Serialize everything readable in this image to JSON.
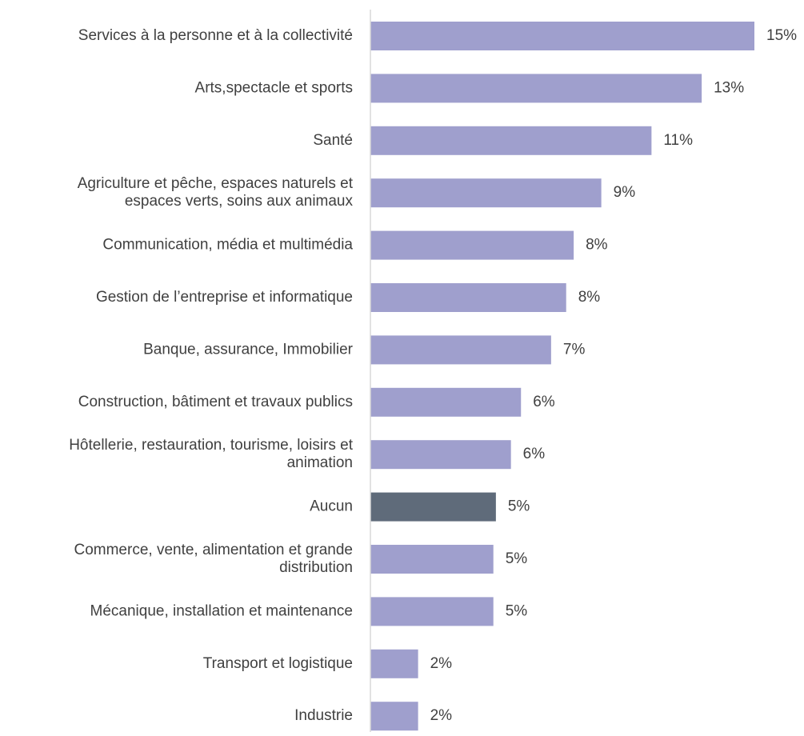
{
  "chart_data": {
    "type": "bar",
    "orientation": "horizontal",
    "categories": [
      [
        "Services à la personne et à la collectivité"
      ],
      [
        "Arts,spectacle et sports"
      ],
      [
        "Santé"
      ],
      [
        "Agriculture et pêche, espaces naturels et",
        "espaces verts, soins aux animaux"
      ],
      [
        "Communication, média et multimédia"
      ],
      [
        "Gestion de l’entreprise et informatique"
      ],
      [
        "Banque, assurance, Immobilier"
      ],
      [
        "Construction, bâtiment et travaux publics"
      ],
      [
        "Hôtellerie, restauration, tourisme, loisirs et",
        "animation"
      ],
      [
        "Aucun"
      ],
      [
        "Commerce, vente, alimentation et grande",
        "distribution"
      ],
      [
        "Mécanique, installation et maintenance"
      ],
      [
        "Transport et logistique"
      ],
      [
        "Industrie"
      ]
    ],
    "values": [
      15.3,
      13.2,
      11.2,
      9.2,
      8.1,
      7.8,
      7.2,
      6.0,
      5.6,
      5.0,
      4.9,
      4.9,
      1.9,
      1.9
    ],
    "value_labels": [
      "15%",
      "13%",
      "11%",
      "9%",
      "8%",
      "8%",
      "7%",
      "6%",
      "6%",
      "5%",
      "5%",
      "5%",
      "2%",
      "2%"
    ],
    "highlight_index": 9,
    "colors": {
      "bar": "#9f9fcd",
      "highlight": "#5f6b7a",
      "axis": "#d9d9d9",
      "text": "#404040"
    },
    "title": "",
    "xlabel": "",
    "ylabel": "",
    "grid": false,
    "legend": "none"
  }
}
